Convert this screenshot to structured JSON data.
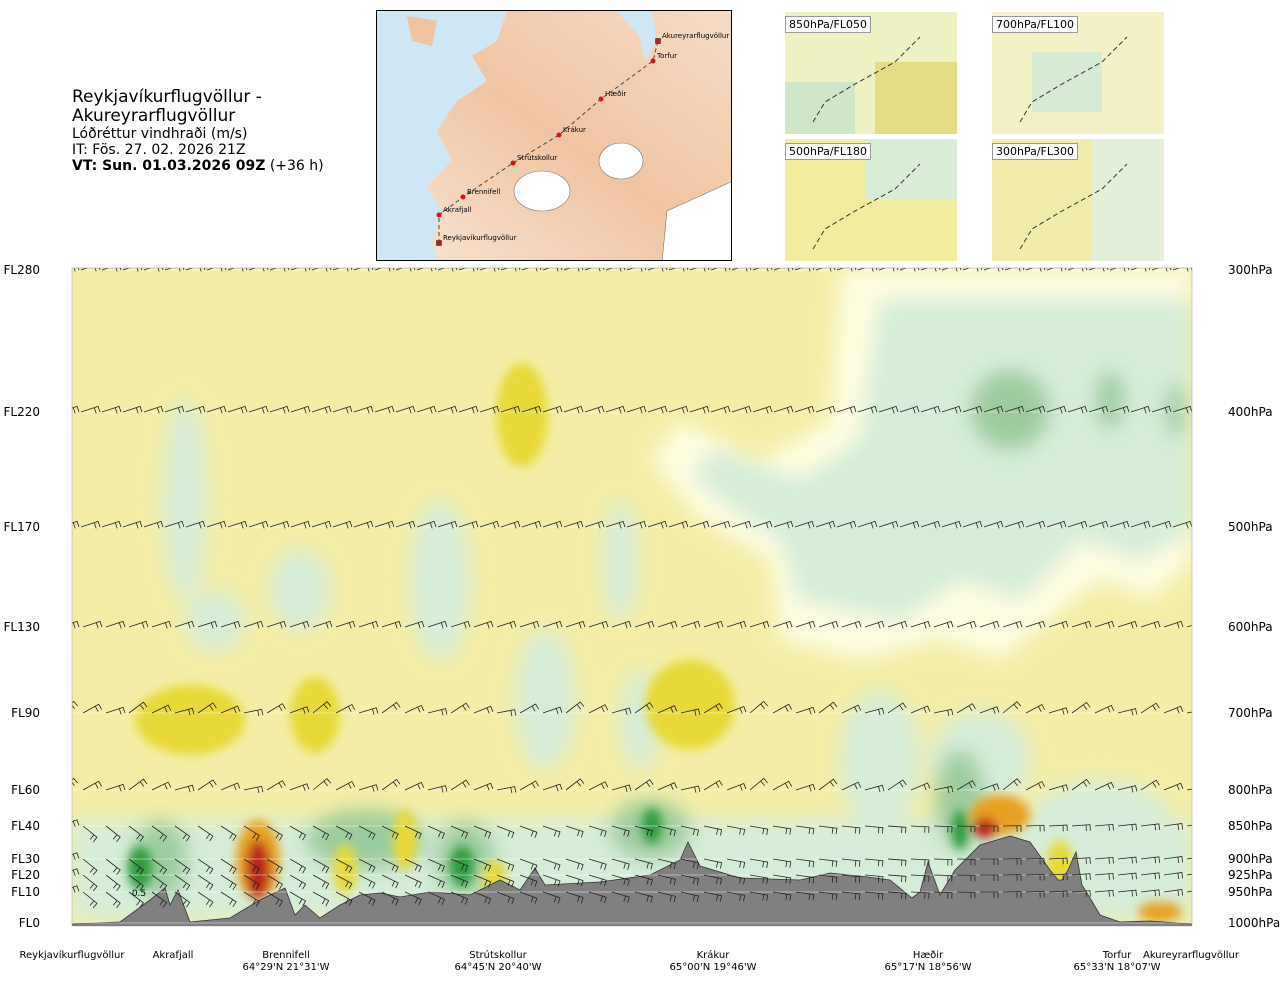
{
  "header": {
    "route_title": "Reykjavíkurflugvöllur - Akureyrarflugvöllur",
    "variable": "Lóðréttur vindhraði (m/s)",
    "issue_time": "IT: Fös. 27. 02. 2026 21Z",
    "valid_time_bold": "VT: Sun. 01.03.2026 09Z",
    "valid_time_rest": " (+36 h)"
  },
  "route_map": {
    "waypoints": [
      "Akureyrarflugvöllur",
      "Torfur",
      "Hæðir",
      "Krákur",
      "Strútskollur",
      "Brennifell",
      "Akrafjall",
      "Reykjavíkurflugvöllur"
    ]
  },
  "mini_maps": [
    {
      "label": "850hPa/FL050"
    },
    {
      "label": "700hPa/FL100"
    },
    {
      "label": "500hPa/FL180"
    },
    {
      "label": "300hPa/FL300"
    }
  ],
  "colors": {
    "strong_down": "#e8d937",
    "weak_down": "#f5eda7",
    "near_zero": "#fdfde0",
    "weak_up": "#d5edd8",
    "moderate_up": "#9bcc9d",
    "strong_up": "#2e9c3c",
    "terrain": "#808080",
    "accent_orange": "#e8a020",
    "accent_red": "#b8201a"
  },
  "chart_data": {
    "type": "heatmap",
    "title": "Reykjavíkurflugvöllur - Akureyrarflugvöllur",
    "subtitle": "Lóðréttur vindhraði (m/s)",
    "levels_left": [
      "FL280",
      "FL220",
      "FL170",
      "FL130",
      "FL90",
      "FL60",
      "FL40",
      "FL30",
      "FL20",
      "FL10",
      "FL0"
    ],
    "levels_right": [
      "300hPa",
      "400hPa",
      "500hPa",
      "600hPa",
      "700hPa",
      "800hPa",
      "850hPa",
      "900hPa",
      "925hPa",
      "950hPa",
      "1000hPa"
    ],
    "locations": [
      {
        "name": "Reykjavíkurflugvöllur",
        "coord": ""
      },
      {
        "name": "Akrafjall",
        "coord": ""
      },
      {
        "name": "Brennifell",
        "coord": "64°29'N 21°31'W"
      },
      {
        "name": "Strútskollur",
        "coord": "64°45'N 20°40'W"
      },
      {
        "name": "Krákur",
        "coord": "65°00'N 19°46'W"
      },
      {
        "name": "Hæðir",
        "coord": "65°17'N 18°56'W"
      },
      {
        "name": "Torfur",
        "coord": "65°33'N 18°07'W"
      },
      {
        "name": "Akureyrarflugvöllur",
        "coord": ""
      }
    ],
    "annotation": "0.5"
  }
}
